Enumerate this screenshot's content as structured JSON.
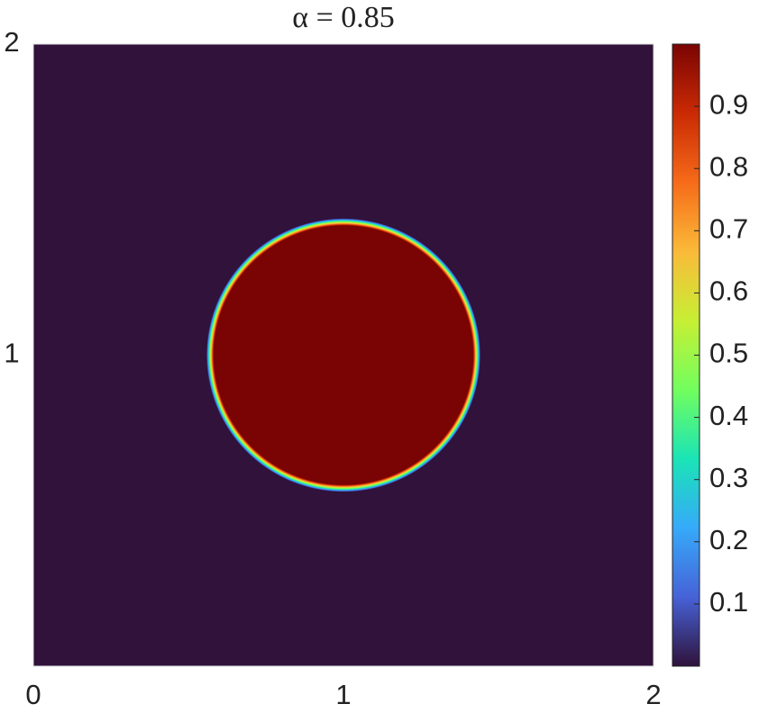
{
  "chart_data": {
    "type": "field",
    "title": "α = 0.85",
    "xlim": [
      0,
      2
    ],
    "xticks": [
      0,
      1,
      2
    ],
    "ylim": [
      0,
      2
    ],
    "yticks": [
      1,
      2
    ],
    "background_value": 0,
    "circle": {
      "center_x": 1,
      "center_y": 1,
      "radius": 0.43,
      "value": 1
    },
    "clim": [
      0,
      1
    ],
    "cticks": [
      0.1,
      0.2,
      0.3,
      0.4,
      0.5,
      0.6,
      0.7,
      0.8,
      0.9
    ],
    "colormap": [
      "#30123b",
      "#4662d7",
      "#36aaf9",
      "#1ae4b6",
      "#72fe5e",
      "#c7ef34",
      "#faba39",
      "#f66b19",
      "#ca2a04",
      "#7a0403"
    ]
  }
}
